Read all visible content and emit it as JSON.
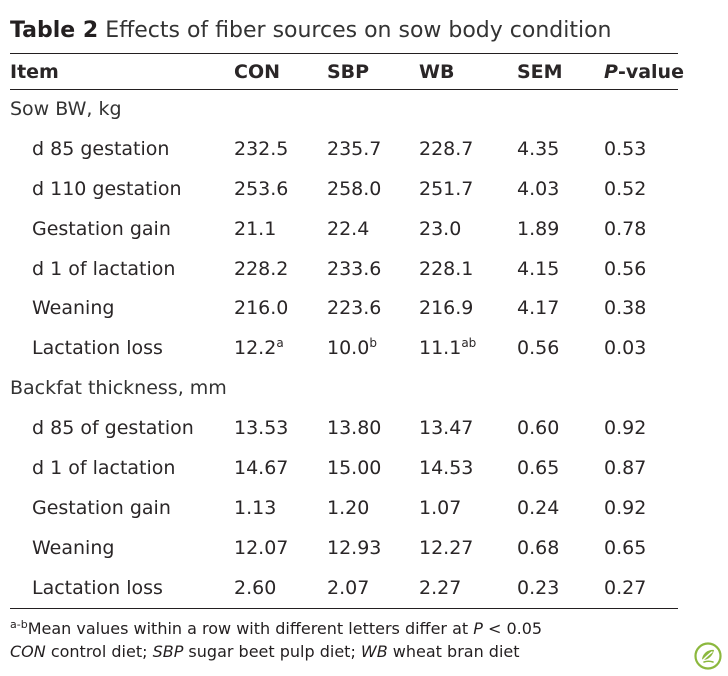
{
  "title": {
    "label": "Table 2",
    "text": "Effects of fiber sources on sow body condition"
  },
  "headers": {
    "item": "Item",
    "con": "CON",
    "sbp": "SBP",
    "wb": "WB",
    "sem": "SEM",
    "p_italic": "P",
    "p_rest": "-value"
  },
  "sections": [
    {
      "label": "Sow BW, kg",
      "rows": [
        {
          "item": "d 85 gestation",
          "con": "232.5",
          "sbp": "235.7",
          "wb": "228.7",
          "sem": "4.35",
          "p": "0.53",
          "con_sup": "",
          "sbp_sup": "",
          "wb_sup": ""
        },
        {
          "item": "d 110 gestation",
          "con": "253.6",
          "sbp": "258.0",
          "wb": "251.7",
          "sem": "4.03",
          "p": "0.52",
          "con_sup": "",
          "sbp_sup": "",
          "wb_sup": ""
        },
        {
          "item": "Gestation gain",
          "con": "21.1",
          "sbp": "22.4",
          "wb": "23.0",
          "sem": "1.89",
          "p": "0.78",
          "con_sup": "",
          "sbp_sup": "",
          "wb_sup": ""
        },
        {
          "item": "d 1 of lactation",
          "con": "228.2",
          "sbp": "233.6",
          "wb": "228.1",
          "sem": "4.15",
          "p": "0.56",
          "con_sup": "",
          "sbp_sup": "",
          "wb_sup": ""
        },
        {
          "item": "Weaning",
          "con": "216.0",
          "sbp": "223.6",
          "wb": "216.9",
          "sem": "4.17",
          "p": "0.38",
          "con_sup": "",
          "sbp_sup": "",
          "wb_sup": ""
        },
        {
          "item": "Lactation loss",
          "con": "12.2",
          "sbp": "10.0",
          "wb": "11.1",
          "sem": "0.56",
          "p": "0.03",
          "con_sup": "a",
          "sbp_sup": "b",
          "wb_sup": "ab"
        }
      ]
    },
    {
      "label": "Backfat thickness, mm",
      "rows": [
        {
          "item": "d 85 of gestation",
          "con": "13.53",
          "sbp": "13.80",
          "wb": "13.47",
          "sem": "0.60",
          "p": "0.92",
          "con_sup": "",
          "sbp_sup": "",
          "wb_sup": ""
        },
        {
          "item": "d 1 of lactation",
          "con": "14.67",
          "sbp": "15.00",
          "wb": "14.53",
          "sem": "0.65",
          "p": "0.87",
          "con_sup": "",
          "sbp_sup": "",
          "wb_sup": ""
        },
        {
          "item": "Gestation gain",
          "con": "1.13",
          "sbp": "1.20",
          "wb": "1.07",
          "sem": "0.24",
          "p": "0.92",
          "con_sup": "",
          "sbp_sup": "",
          "wb_sup": ""
        },
        {
          "item": "Weaning",
          "con": "12.07",
          "sbp": "12.93",
          "wb": "12.27",
          "sem": "0.68",
          "p": "0.65",
          "con_sup": "",
          "sbp_sup": "",
          "wb_sup": ""
        },
        {
          "item": "Lactation loss",
          "con": "2.60",
          "sbp": "2.07",
          "wb": "2.27",
          "sem": "0.23",
          "p": "0.27",
          "con_sup": "",
          "sbp_sup": "",
          "wb_sup": ""
        }
      ]
    }
  ],
  "footnotes": {
    "line1": {
      "sup": "a-b",
      "text": "Mean values within a row with different letters differ at ",
      "p_italic": "P",
      "rest": " < 0.05"
    },
    "line2": [
      {
        "abbr": "CON",
        "def": " control diet; "
      },
      {
        "abbr": "SBP",
        "def": " sugar beet pulp diet; "
      },
      {
        "abbr": "WB",
        "def": " wheat bran diet"
      }
    ]
  },
  "badge": {
    "icon": "springer-leaf-icon",
    "color": "#8cb83e"
  }
}
